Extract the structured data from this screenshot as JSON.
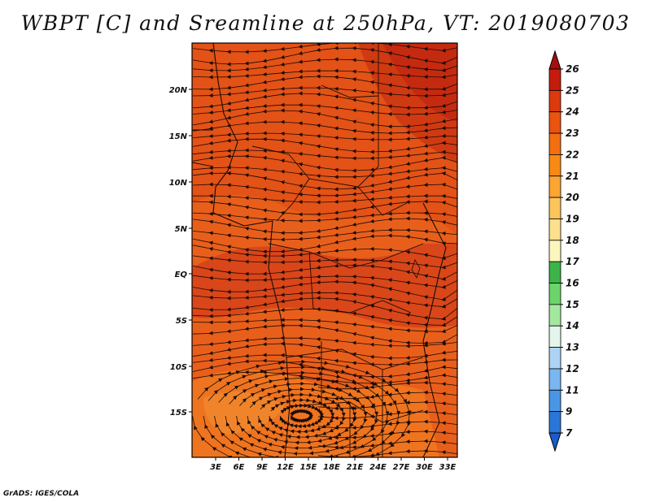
{
  "title": "WBPT [C] and Sreamline at 250hPa, VT: 2019080703",
  "credit": "GrADS: IGES/COLA",
  "map": {
    "latitude_labels": [
      "20N",
      "15N",
      "10N",
      "5N",
      "EQ",
      "5S",
      "10S",
      "15S"
    ],
    "longitude_labels": [
      "3E",
      "6E",
      "9E",
      "12E",
      "15E",
      "18E",
      "21E",
      "24E",
      "27E",
      "30E",
      "33E"
    ]
  },
  "colorbar": {
    "labels": [
      "26",
      "25",
      "24",
      "23",
      "22",
      "21",
      "20",
      "19",
      "18",
      "17",
      "16",
      "15",
      "14",
      "13",
      "12",
      "11",
      "9",
      "7"
    ],
    "colors": [
      "#a50f0f",
      "#c41c0c",
      "#dc3a0e",
      "#ea5410",
      "#f26f12",
      "#f78a14",
      "#fba532",
      "#fcc55a",
      "#fde08e",
      "#fcf6be",
      "#3cb44a",
      "#6cd46a",
      "#a4e8a0",
      "#e4f6ec",
      "#aed4f4",
      "#7ab6f0",
      "#4a96e6",
      "#2a76d8",
      "#1a5cc8"
    ]
  }
}
